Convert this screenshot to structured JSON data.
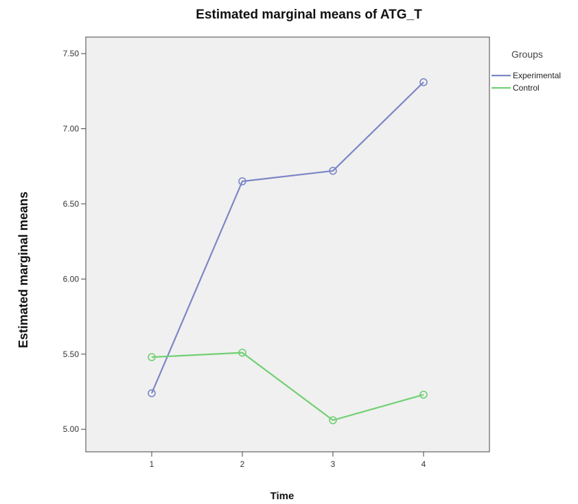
{
  "chart_data": {
    "type": "line",
    "title": "Estimated marginal means of ATG_T",
    "xlabel": "Time",
    "ylabel": "Estimated marginal means",
    "x": [
      1,
      2,
      3,
      4
    ],
    "categories": [
      "1",
      "2",
      "3",
      "4"
    ],
    "ylim": [
      4.85,
      7.61
    ],
    "yticks": [
      "5.00",
      "5.50",
      "6.00",
      "6.50",
      "7.00",
      "7.50"
    ],
    "ytick_values": [
      5.0,
      5.5,
      6.0,
      6.5,
      7.0,
      7.5
    ],
    "grid": false,
    "legend": {
      "title": "Groups",
      "placement": "right"
    },
    "series": [
      {
        "name": "Experimental",
        "values": [
          5.24,
          6.65,
          6.72,
          7.31
        ],
        "color": "#7b86c6"
      },
      {
        "name": "Control",
        "values": [
          5.48,
          5.51,
          5.06,
          5.23
        ],
        "color": "#6fd071"
      }
    ],
    "plot_background": "#f0f0f0"
  }
}
